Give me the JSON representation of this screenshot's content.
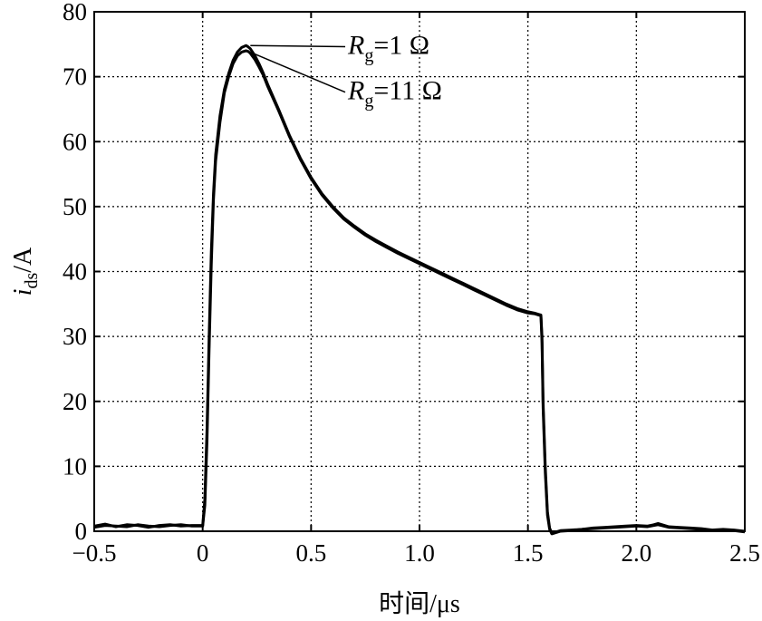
{
  "chart_data": {
    "type": "line",
    "title": "",
    "xlabel": "时间/μs",
    "ylabel": {
      "var": "i",
      "sub": "ds",
      "unit": "/A"
    },
    "xlim": [
      -0.5,
      2.5
    ],
    "ylim": [
      0,
      80
    ],
    "x_ticks": [
      -0.5,
      0,
      0.5,
      1.0,
      1.5,
      2.0,
      2.5
    ],
    "x_tick_labels": [
      "−0.5",
      "0",
      "0.5",
      "1.0",
      "1.5",
      "2.0",
      "2.5"
    ],
    "y_ticks": [
      0,
      10,
      20,
      30,
      40,
      50,
      60,
      70,
      80
    ],
    "y_tick_labels": [
      "0",
      "10",
      "20",
      "30",
      "40",
      "50",
      "60",
      "70",
      "80"
    ],
    "grid": true,
    "grid_style": "dotted",
    "line_color": "#000000",
    "series": [
      {
        "name": "Rg=1 Ω",
        "label_parts": {
          "var": "R",
          "sub": "g",
          "rest": "=1 Ω"
        },
        "x": [
          -0.5,
          -0.45,
          -0.4,
          -0.35,
          -0.3,
          -0.25,
          -0.2,
          -0.15,
          -0.1,
          -0.05,
          0.0,
          0.01,
          0.02,
          0.03,
          0.04,
          0.05,
          0.06,
          0.08,
          0.1,
          0.12,
          0.14,
          0.16,
          0.18,
          0.2,
          0.21,
          0.22,
          0.24,
          0.26,
          0.28,
          0.3,
          0.35,
          0.4,
          0.45,
          0.5,
          0.55,
          0.6,
          0.65,
          0.7,
          0.75,
          0.8,
          0.85,
          0.9,
          0.95,
          1.0,
          1.05,
          1.1,
          1.15,
          1.2,
          1.25,
          1.3,
          1.35,
          1.4,
          1.45,
          1.5,
          1.53,
          1.55,
          1.56,
          1.565,
          1.57,
          1.58,
          1.59,
          1.6,
          1.61,
          1.65,
          1.7,
          1.75,
          1.8,
          1.85,
          1.9,
          1.95,
          2.0,
          2.05,
          2.08,
          2.1,
          2.15,
          2.2,
          2.25,
          2.3,
          2.35,
          2.4,
          2.45,
          2.5
        ],
        "y": [
          0.8,
          1.1,
          0.7,
          1.0,
          0.9,
          0.6,
          0.9,
          1.0,
          0.8,
          0.9,
          0.9,
          5,
          16,
          30,
          43,
          52,
          58,
          64,
          68,
          70.5,
          72.5,
          73.8,
          74.5,
          74.8,
          74.6,
          74.3,
          73.3,
          72.0,
          70.5,
          68.8,
          65.0,
          61.0,
          57.5,
          54.5,
          52.0,
          50.0,
          48.3,
          47.0,
          45.8,
          44.8,
          43.9,
          43.0,
          42.2,
          41.4,
          40.6,
          39.8,
          39.0,
          38.2,
          37.4,
          36.6,
          35.8,
          35.0,
          34.3,
          33.8,
          33.6,
          33.4,
          33.3,
          30,
          20,
          10,
          3,
          0.5,
          -0.3,
          0.1,
          0.2,
          0.3,
          0.5,
          0.6,
          0.7,
          0.8,
          0.9,
          0.8,
          1.0,
          1.2,
          0.7,
          0.6,
          0.5,
          0.4,
          0.2,
          0.3,
          0.2,
          0.0
        ]
      },
      {
        "name": "Rg=11 Ω",
        "label_parts": {
          "var": "R",
          "sub": "g",
          "rest": "=11 Ω"
        },
        "x": [
          -0.5,
          -0.45,
          -0.4,
          -0.35,
          -0.3,
          -0.25,
          -0.2,
          -0.15,
          -0.1,
          -0.05,
          0.0,
          0.01,
          0.02,
          0.03,
          0.04,
          0.05,
          0.06,
          0.08,
          0.1,
          0.12,
          0.14,
          0.16,
          0.18,
          0.2,
          0.21,
          0.22,
          0.24,
          0.26,
          0.28,
          0.3,
          0.35,
          0.4,
          0.45,
          0.5,
          0.55,
          0.6,
          0.65,
          0.7,
          0.75,
          0.8,
          0.85,
          0.9,
          0.95,
          1.0,
          1.05,
          1.1,
          1.15,
          1.2,
          1.25,
          1.3,
          1.35,
          1.4,
          1.45,
          1.5,
          1.53,
          1.55,
          1.56,
          1.565,
          1.57,
          1.58,
          1.59,
          1.6,
          1.61,
          1.65,
          1.7,
          1.75,
          1.8,
          1.85,
          1.9,
          1.95,
          2.0,
          2.05,
          2.08,
          2.1,
          2.15,
          2.2,
          2.25,
          2.3,
          2.35,
          2.4,
          2.45,
          2.5
        ],
        "y": [
          0.6,
          0.9,
          0.8,
          0.7,
          1.0,
          0.8,
          0.7,
          0.9,
          1.0,
          0.8,
          0.8,
          4,
          14,
          28,
          41,
          51,
          57,
          63,
          67.5,
          70,
          72,
          73.2,
          73.8,
          74.0,
          73.9,
          73.6,
          72.7,
          71.5,
          70.2,
          68.5,
          64.8,
          60.8,
          57.3,
          54.3,
          51.8,
          49.8,
          48.1,
          46.8,
          45.6,
          44.6,
          43.7,
          42.8,
          42.0,
          41.2,
          40.4,
          39.6,
          38.8,
          38.0,
          37.2,
          36.4,
          35.6,
          34.8,
          34.1,
          33.6,
          33.5,
          33.3,
          33.2,
          29,
          19,
          9,
          2.5,
          0.3,
          -0.4,
          0.0,
          0.1,
          0.3,
          0.4,
          0.5,
          0.6,
          0.7,
          0.8,
          0.7,
          0.9,
          1.0,
          0.6,
          0.5,
          0.4,
          0.3,
          0.1,
          0.2,
          0.1,
          -0.1
        ]
      }
    ],
    "annotations": [
      {
        "series": "Rg=1 Ω",
        "target": [
          0.22,
          74.8
        ],
        "text_pos": [
          0.67,
          73.5
        ]
      },
      {
        "series": "Rg=11 Ω",
        "target": [
          0.24,
          73.5
        ],
        "text_pos": [
          0.67,
          66.5
        ]
      }
    ]
  }
}
